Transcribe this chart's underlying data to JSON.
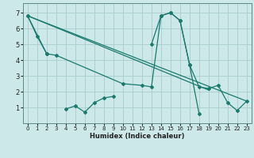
{
  "xlabel": "Humidex (Indice chaleur)",
  "background_color": "#cce8e8",
  "line_color": "#1a7a6e",
  "grid_color": "#aacccc",
  "xlim": [
    -0.5,
    23.5
  ],
  "ylim": [
    0.0,
    7.6
  ],
  "xticks": [
    0,
    1,
    2,
    3,
    4,
    5,
    6,
    7,
    8,
    9,
    10,
    11,
    12,
    13,
    14,
    15,
    16,
    17,
    18,
    19,
    20,
    21,
    22,
    23
  ],
  "yticks": [
    1,
    2,
    3,
    4,
    5,
    6,
    7
  ],
  "series1": {
    "segments": [
      {
        "x": [
          0,
          1,
          2
        ],
        "y": [
          6.8,
          5.5,
          4.4
        ]
      },
      {
        "x": [
          4,
          5,
          6,
          7,
          8,
          9
        ],
        "y": [
          0.9,
          1.1,
          0.7,
          1.3,
          1.6,
          1.7
        ]
      },
      {
        "x": [
          13,
          14,
          15,
          16,
          17,
          18
        ],
        "y": [
          5.0,
          6.8,
          7.0,
          6.5,
          3.7,
          0.6
        ]
      }
    ]
  },
  "series2": {
    "x": [
      0,
      2,
      3,
      10,
      12,
      13,
      14,
      15,
      16,
      17,
      18,
      19,
      20,
      21,
      22,
      23
    ],
    "y": [
      6.8,
      4.4,
      4.3,
      2.5,
      2.4,
      2.3,
      6.8,
      7.0,
      6.5,
      3.7,
      2.3,
      2.2,
      2.4,
      1.3,
      0.8,
      1.4
    ]
  },
  "series3": {
    "x": [
      0,
      19
    ],
    "y": [
      6.8,
      2.1
    ]
  },
  "series4": {
    "x": [
      0,
      23
    ],
    "y": [
      6.8,
      1.4
    ]
  }
}
